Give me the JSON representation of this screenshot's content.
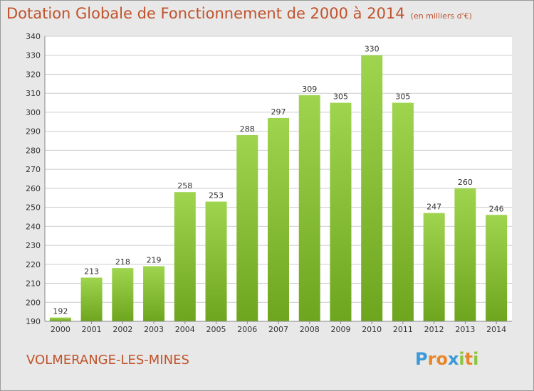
{
  "header": {
    "title": "Dotation Globale de Fonctionnement de 2000 à 2014",
    "unit": "(en milliers d'€)"
  },
  "footer": {
    "town": "VOLMERANGE-LES-MINES",
    "logo": "Proxiti"
  },
  "colors": {
    "bar_light": "#9fd44e",
    "bar_dark": "#6ea51f",
    "title": "#c0532c",
    "background": "#e8e8e8",
    "plot_background": "#ffffff",
    "grid": "#cccccc"
  },
  "chart_data": {
    "type": "bar",
    "title": "Dotation Globale de Fonctionnement de 2000 à 2014",
    "subtitle": "(en milliers d'€)",
    "xlabel": "",
    "ylabel": "",
    "categories": [
      "2000",
      "2001",
      "2002",
      "2003",
      "2004",
      "2005",
      "2006",
      "2007",
      "2008",
      "2009",
      "2010",
      "2011",
      "2012",
      "2013",
      "2014"
    ],
    "values": [
      192,
      213,
      218,
      219,
      258,
      253,
      288,
      297,
      309,
      305,
      330,
      305,
      247,
      260,
      246
    ],
    "ylim": [
      190,
      340
    ],
    "yticks": [
      190,
      200,
      210,
      220,
      230,
      240,
      250,
      260,
      270,
      280,
      290,
      300,
      310,
      320,
      330,
      340
    ],
    "grid": true,
    "legend": "none"
  }
}
